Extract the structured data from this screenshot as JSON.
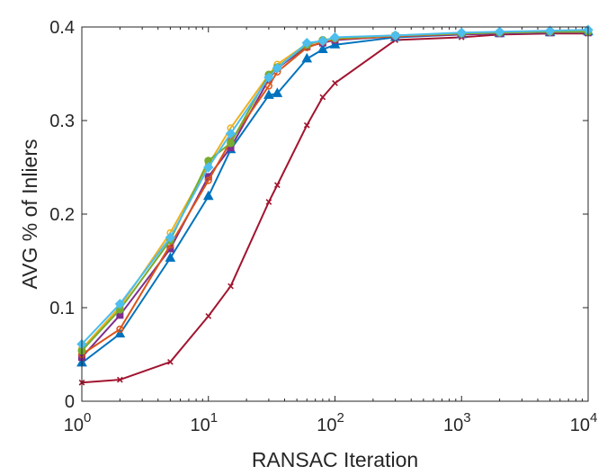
{
  "chart_data": {
    "type": "line",
    "xscale": "log",
    "xlabel": "RANSAC Iteration",
    "ylabel": "AVG % of Inliers",
    "xlim": [
      1,
      10000
    ],
    "ylim": [
      0,
      0.4
    ],
    "yticks": [
      {
        "value": 0,
        "label": "0"
      },
      {
        "value": 0.1,
        "label": "0.1"
      },
      {
        "value": 0.2,
        "label": "0.2"
      },
      {
        "value": 0.3,
        "label": "0.3"
      },
      {
        "value": 0.4,
        "label": "0.4"
      }
    ],
    "xticks": [
      {
        "value": 1,
        "base": "10",
        "exp": "0"
      },
      {
        "value": 10,
        "base": "10",
        "exp": "1"
      },
      {
        "value": 100,
        "base": "10",
        "exp": "2"
      },
      {
        "value": 1000,
        "base": "10",
        "exp": "3"
      },
      {
        "value": 10000,
        "base": "10",
        "exp": "4"
      }
    ],
    "series": [
      {
        "name": "series-red-x",
        "color": "#A2142F",
        "marker": "x",
        "x": [
          1,
          2,
          5,
          10,
          15,
          30,
          35,
          60,
          80,
          100,
          300,
          1000,
          2000,
          5000,
          10000
        ],
        "y": [
          0.02,
          0.023,
          0.042,
          0.091,
          0.123,
          0.213,
          0.231,
          0.295,
          0.325,
          0.34,
          0.386,
          0.389,
          0.392,
          0.393,
          0.393
        ]
      },
      {
        "name": "series-blue-triangle",
        "color": "#0072BD",
        "marker": "triangle",
        "x": [
          1,
          2,
          5,
          10,
          15,
          30,
          35,
          60,
          80,
          100,
          300,
          1000,
          2000,
          5000,
          10000
        ],
        "y": [
          0.041,
          0.072,
          0.153,
          0.219,
          0.269,
          0.327,
          0.329,
          0.366,
          0.376,
          0.381,
          0.389,
          0.392,
          0.393,
          0.394,
          0.395
        ]
      },
      {
        "name": "series-purple-square",
        "color": "#7E2F8E",
        "marker": "square",
        "x": [
          1,
          2,
          5,
          10,
          15,
          30,
          35,
          60,
          80,
          100,
          300,
          1000,
          2000,
          5000,
          10000
        ],
        "y": [
          0.047,
          0.092,
          0.163,
          0.24,
          0.271,
          0.344,
          0.356,
          0.379,
          0.383,
          0.386,
          0.39,
          0.392,
          0.393,
          0.394,
          0.394
        ]
      },
      {
        "name": "series-orange-circle",
        "color": "#D95319",
        "marker": "circle-open",
        "x": [
          1,
          2,
          5,
          10,
          15,
          30,
          35,
          60,
          80,
          100,
          300,
          1000,
          2000,
          5000,
          10000
        ],
        "y": [
          0.05,
          0.077,
          0.167,
          0.236,
          0.278,
          0.337,
          0.352,
          0.378,
          0.384,
          0.387,
          0.39,
          0.393,
          0.394,
          0.395,
          0.395
        ]
      },
      {
        "name": "series-yellow-circle",
        "color": "#EDB120",
        "marker": "circle-open",
        "x": [
          1,
          2,
          5,
          10,
          15,
          30,
          35,
          60,
          80,
          100,
          300,
          1000,
          2000,
          5000,
          10000
        ],
        "y": [
          0.056,
          0.101,
          0.18,
          0.253,
          0.292,
          0.349,
          0.36,
          0.382,
          0.385,
          0.388,
          0.391,
          0.393,
          0.394,
          0.395,
          0.395
        ]
      },
      {
        "name": "series-green-circle",
        "color": "#77AC30",
        "marker": "circle",
        "x": [
          1,
          2,
          5,
          10,
          15,
          30,
          35,
          60,
          80,
          100,
          300,
          1000,
          2000,
          5000,
          10000
        ],
        "y": [
          0.054,
          0.098,
          0.172,
          0.257,
          0.276,
          0.349,
          0.357,
          0.381,
          0.386,
          0.388,
          0.391,
          0.393,
          0.394,
          0.395,
          0.395
        ]
      },
      {
        "name": "series-cyan-diamond",
        "color": "#4DBEEE",
        "marker": "diamond",
        "x": [
          1,
          2,
          5,
          10,
          15,
          30,
          35,
          60,
          80,
          100,
          300,
          1000,
          2000,
          5000,
          10000
        ],
        "y": [
          0.061,
          0.104,
          0.175,
          0.25,
          0.286,
          0.346,
          0.356,
          0.383,
          0.385,
          0.389,
          0.391,
          0.394,
          0.395,
          0.396,
          0.397
        ]
      }
    ]
  }
}
